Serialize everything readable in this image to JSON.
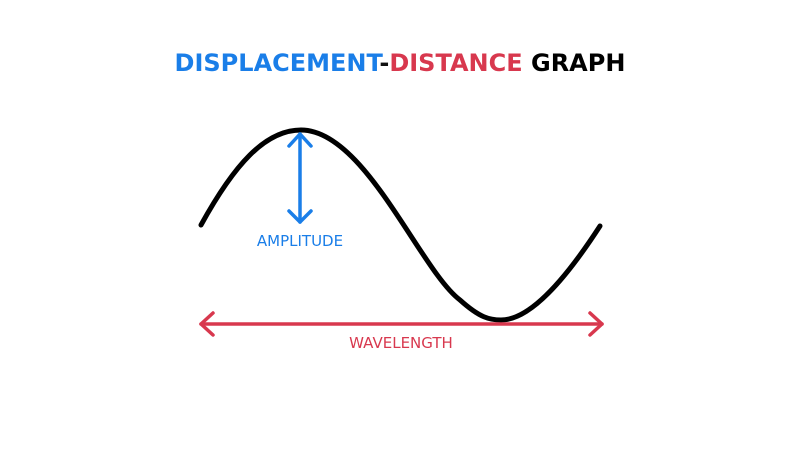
{
  "title": {
    "part1": "DISPLACEMENT",
    "separator": "-",
    "part2": "DISTANCE",
    "part3": " GRAPH"
  },
  "labels": {
    "amplitude": "AMPLITUDE",
    "wavelength": "WAVELENGTH"
  },
  "colors": {
    "blue": "#1a7ee8",
    "red": "#d8384e",
    "black": "#000000"
  }
}
